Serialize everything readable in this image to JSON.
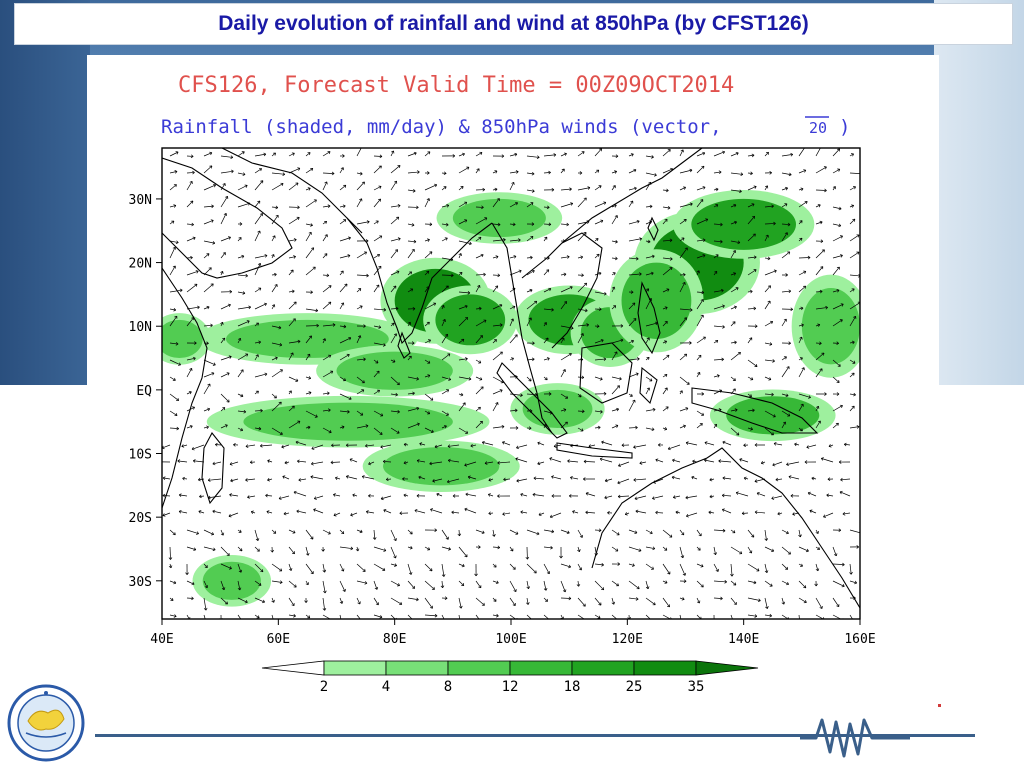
{
  "slide": {
    "title": "Daily evolution of rainfall and wind at 850hPa (by CFST126)"
  },
  "figure": {
    "title_line1": "CFS126, Forecast Valid Time = 00Z09OCT2014",
    "title_line2": "Rainfall (shaded, mm/day) & 850hPa winds (vector,",
    "ref_vector_value": "20",
    "title_line2_close": ")",
    "colors": {
      "title_line1": "#e0514d",
      "title_line2": "#3b3bd6",
      "land_outline": "#000000",
      "vectors": "#000000"
    }
  },
  "map": {
    "lon_range": [
      40,
      160
    ],
    "lat_range": [
      -36,
      38
    ],
    "x_tick_labels": [
      "40E",
      "60E",
      "80E",
      "100E",
      "120E",
      "140E",
      "160E"
    ],
    "x_tick_values": [
      40,
      60,
      80,
      100,
      120,
      140,
      160
    ],
    "y_tick_labels": [
      "30N",
      "20N",
      "10N",
      "EQ",
      "10S",
      "20S",
      "30S"
    ],
    "y_tick_values": [
      30,
      20,
      10,
      0,
      -10,
      -20,
      -30
    ]
  },
  "colorbar": {
    "labels": [
      "2",
      "4",
      "8",
      "12",
      "18",
      "25",
      "35"
    ],
    "colors": [
      "#ffffff",
      "#9ef09e",
      "#78e078",
      "#52cc52",
      "#37b837",
      "#21a321",
      "#118c11",
      "#0b740b"
    ]
  },
  "rain_regions": [
    {
      "lon": 87,
      "lat": 14,
      "rlon": 7,
      "rlat": 5,
      "mm": 25
    },
    {
      "lon": 93,
      "lat": 11,
      "rlon": 6,
      "rlat": 4,
      "mm": 18
    },
    {
      "lon": 110,
      "lat": 11,
      "rlon": 7,
      "rlat": 4,
      "mm": 18
    },
    {
      "lon": 117,
      "lat": 9,
      "rlon": 5,
      "rlat": 4,
      "mm": 12
    },
    {
      "lon": 132,
      "lat": 20,
      "rlon": 8,
      "rlat": 6,
      "mm": 25
    },
    {
      "lon": 140,
      "lat": 26,
      "rlon": 9,
      "rlat": 4,
      "mm": 18
    },
    {
      "lon": 125,
      "lat": 14,
      "rlon": 6,
      "rlat": 6,
      "mm": 12
    },
    {
      "lon": 65,
      "lat": 8,
      "rlon": 14,
      "rlat": 3,
      "mm": 8
    },
    {
      "lon": 80,
      "lat": 3,
      "rlon": 10,
      "rlat": 3,
      "mm": 8
    },
    {
      "lon": 72,
      "lat": -5,
      "rlon": 18,
      "rlat": 3,
      "mm": 8
    },
    {
      "lon": 88,
      "lat": -12,
      "rlon": 10,
      "rlat": 3,
      "mm": 8
    },
    {
      "lon": 52,
      "lat": -30,
      "rlon": 5,
      "rlat": 3,
      "mm": 8
    },
    {
      "lon": 145,
      "lat": -4,
      "rlon": 8,
      "rlat": 3,
      "mm": 12
    },
    {
      "lon": 108,
      "lat": -3,
      "rlon": 6,
      "rlat": 3,
      "mm": 8
    },
    {
      "lon": 43,
      "lat": 8,
      "rlon": 4,
      "rlat": 3,
      "mm": 8
    },
    {
      "lon": 98,
      "lat": 27,
      "rlon": 8,
      "rlat": 3,
      "mm": 8
    },
    {
      "lon": 155,
      "lat": 10,
      "rlon": 5,
      "rlat": 6,
      "mm": 8
    }
  ]
}
